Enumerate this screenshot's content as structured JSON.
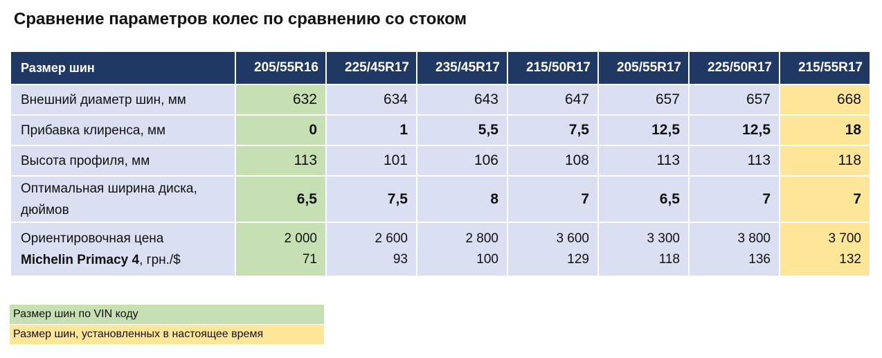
{
  "title": "Сравнение параметров колес по сравнению со стоком",
  "table": {
    "header_label": "Размер шин",
    "columns": [
      "205/55R16",
      "225/45R17",
      "235/45R17",
      "215/50R17",
      "205/55R17",
      "225/50R17",
      "215/55R17"
    ],
    "rows": [
      {
        "label": "Внешний диаметр шин, мм",
        "values": [
          "632",
          "634",
          "643",
          "647",
          "657",
          "657",
          "668"
        ]
      },
      {
        "label": "Прибавка клиренса, мм",
        "values": [
          "0",
          "1",
          "5,5",
          "7,5",
          "12,5",
          "12,5",
          "18"
        ]
      },
      {
        "label": "Высота профиля, мм",
        "values": [
          "113",
          "101",
          "106",
          "108",
          "113",
          "113",
          "118"
        ]
      },
      {
        "label_line1": "Оптимальная ширина диска,",
        "label_line2": "дюймов",
        "values": [
          "6,5",
          "7,5",
          "8",
          "7",
          "6,5",
          "7",
          "7"
        ]
      },
      {
        "label_line1": "Ориентировочная цена",
        "label_bold": "Michelin Primacy 4",
        "label_suffix": ", грн./$",
        "uah": [
          "2 000",
          "2 600",
          "2 800",
          "3 600",
          "3 300",
          "3 800",
          "3 700"
        ],
        "usd": [
          "71",
          "93",
          "100",
          "129",
          "118",
          "136",
          "132"
        ]
      }
    ]
  },
  "legend": {
    "vin_label": "Размер шин по VIN коду",
    "current_label": "Размер шин, установленных в настоящее время"
  },
  "colors": {
    "header_bg": "#203864",
    "cell_bg": "#dae0f1",
    "vin_highlight": "#c6e0b4",
    "current_highlight": "#ffe699"
  }
}
